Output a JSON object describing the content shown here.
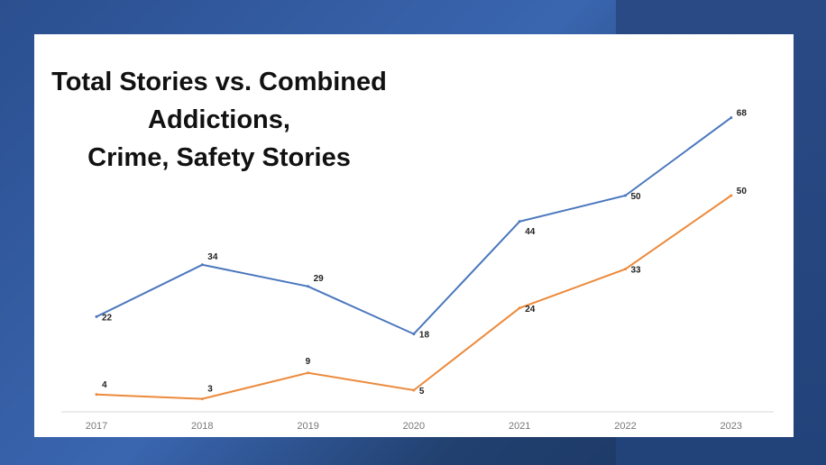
{
  "colors": {
    "series_total": "#4a77bd",
    "series_combined": "#ec8a3c"
  },
  "chart_data": {
    "type": "line",
    "title": [
      "Total Stories vs. Combined",
      "Addictions,",
      "Crime, Safety Stories"
    ],
    "categories": [
      "2017",
      "2018",
      "2019",
      "2020",
      "2021",
      "2022",
      "2023"
    ],
    "series": [
      {
        "values": [
          22,
          34,
          29,
          18,
          44,
          50,
          68
        ]
      },
      {
        "values": [
          4,
          3,
          9,
          5,
          24,
          33,
          50
        ]
      }
    ],
    "ylim": [
      0,
      75
    ],
    "grid": false,
    "legend": "none"
  }
}
